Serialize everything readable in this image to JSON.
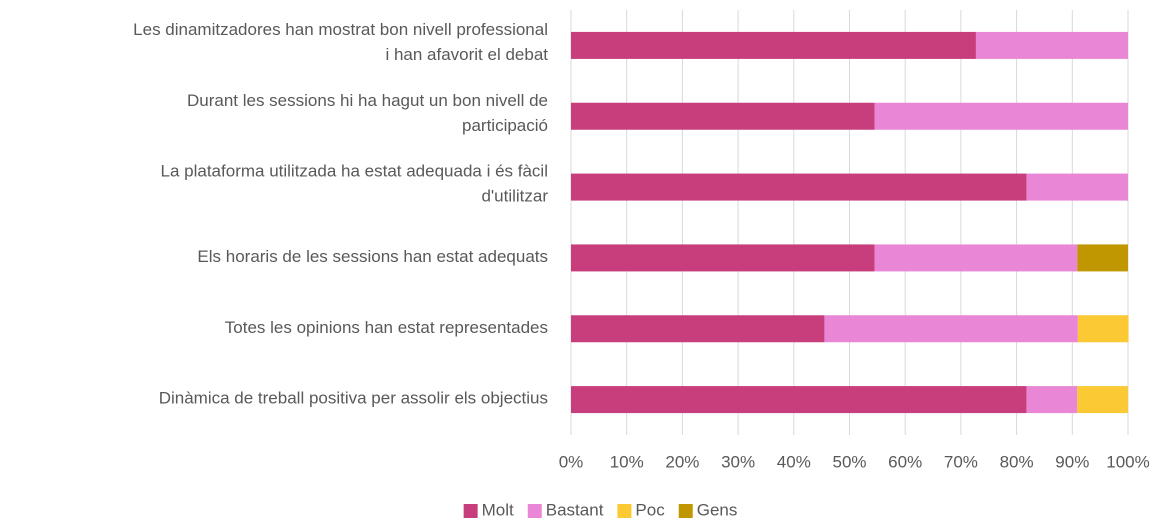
{
  "chart_data": {
    "type": "stacked_barh",
    "categories": [
      [
        "Les dinamitzadores han mostrat bon nivell professional",
        "i han afavorit el debat"
      ],
      [
        "Durant les sessions hi ha hagut un bon nivell de",
        "participació"
      ],
      [
        "La plataforma utilitzada ha estat adequada i és fàcil",
        "d'utilitzar"
      ],
      [
        "Els horaris de les sessions han estat adequats"
      ],
      [
        "Totes les opinions han estat representades"
      ],
      [
        "Dinàmica de treball positiva per assolir els objectius"
      ]
    ],
    "series": [
      {
        "name": "Molt",
        "color": "#c83e7d",
        "values": [
          72.7,
          54.5,
          81.8,
          54.5,
          45.5,
          81.8
        ]
      },
      {
        "name": "Bastant",
        "color": "#e986d6",
        "values": [
          27.3,
          45.5,
          18.2,
          36.4,
          45.5,
          9.1
        ]
      },
      {
        "name": "Poc",
        "color": "#fac934",
        "values": [
          0,
          0,
          0,
          0,
          9.1,
          9.1
        ]
      },
      {
        "name": "Gens",
        "color": "#c09700",
        "values": [
          0,
          0,
          0,
          9.1,
          0,
          0
        ]
      }
    ],
    "xlim": [
      0,
      100
    ],
    "xticks": [
      {
        "value": 0,
        "label": "0%"
      },
      {
        "value": 10,
        "label": "10%"
      },
      {
        "value": 20,
        "label": "20%"
      },
      {
        "value": 30,
        "label": "30%"
      },
      {
        "value": 40,
        "label": "40%"
      },
      {
        "value": 50,
        "label": "50%"
      },
      {
        "value": 60,
        "label": "60%"
      },
      {
        "value": 70,
        "label": "70%"
      },
      {
        "value": 80,
        "label": "80%"
      },
      {
        "value": 90,
        "label": "90%"
      },
      {
        "value": 100,
        "label": "100%"
      }
    ],
    "grid": true,
    "legend": "bottom"
  }
}
